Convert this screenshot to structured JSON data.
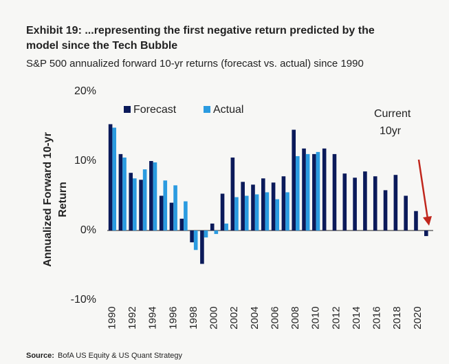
{
  "chart_data": {
    "type": "bar",
    "title": [
      "Exhibit 19: ...representing the first negative return predicted by the",
      "model since the Tech Bubble"
    ],
    "subtitle": "S&P 500 annualized forward 10-yr returns (forecast vs. actual) since 1990",
    "y_label": [
      "Annualized Forward 10-yr",
      "Return"
    ],
    "annotation": [
      "Current",
      "10yr"
    ],
    "source_label": "Source:",
    "source": "BofA US Equity & US Quant Strategy",
    "categories": [
      "1990",
      null,
      "1992",
      null,
      "1994",
      null,
      "1996",
      null,
      "1998",
      null,
      "2000",
      null,
      "2002",
      null,
      "2004",
      null,
      "2006",
      null,
      "2008",
      null,
      "2010",
      null,
      "2012",
      null,
      "2014",
      null,
      "2016",
      null,
      "2018",
      null,
      "2020",
      null
    ],
    "series": [
      {
        "name": "Forecast",
        "color": "#0b1a5a",
        "values": [
          15.3,
          11.0,
          8.3,
          7.3,
          10.0,
          5.0,
          4.0,
          1.7,
          -1.7,
          -4.8,
          1.0,
          5.3,
          10.5,
          7.0,
          6.6,
          7.5,
          6.9,
          7.8,
          14.5,
          11.8,
          11.0,
          11.8,
          11.0,
          8.2,
          7.6,
          8.5,
          7.8,
          5.8,
          8.0,
          5.0,
          2.8,
          -0.8
        ]
      },
      {
        "name": "Actual",
        "color": "#2b9be0",
        "values": [
          14.8,
          10.5,
          7.5,
          8.8,
          9.8,
          7.2,
          6.5,
          4.2,
          -2.8,
          -1.0,
          -0.5,
          1.0,
          4.8,
          5.0,
          5.2,
          5.5,
          4.5,
          5.5,
          10.7,
          11.0,
          11.3,
          null,
          null,
          null,
          null,
          null,
          null,
          null,
          null,
          null,
          null,
          null
        ]
      }
    ],
    "ylim": [
      -10,
      20
    ],
    "yticks": [
      {
        "value": 20,
        "label": "20%"
      },
      {
        "value": 10,
        "label": "10%"
      },
      {
        "value": 0,
        "label": "0%"
      },
      {
        "value": -10,
        "label": "-10%"
      }
    ],
    "grid": false
  }
}
